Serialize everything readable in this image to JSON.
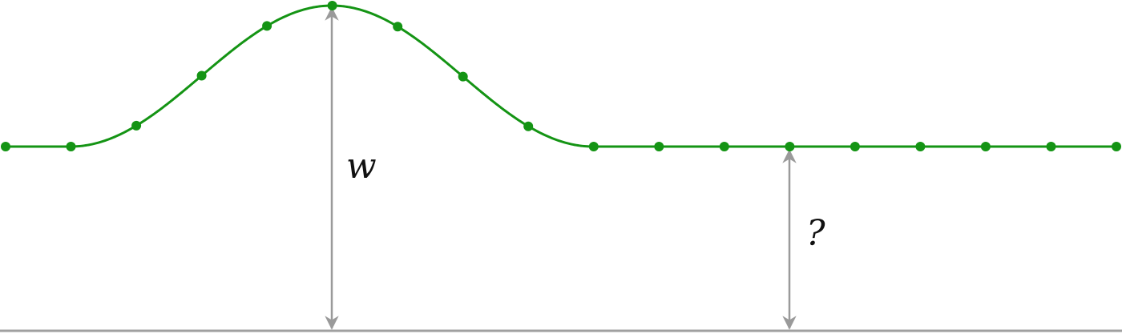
{
  "diagram": {
    "labels": {
      "peak_height": "w",
      "flat_height": "?"
    },
    "colors": {
      "wave": "#149414",
      "arrow": "#9a9a9a",
      "baseline": "#a0a0a0",
      "text": "#111111"
    }
  }
}
